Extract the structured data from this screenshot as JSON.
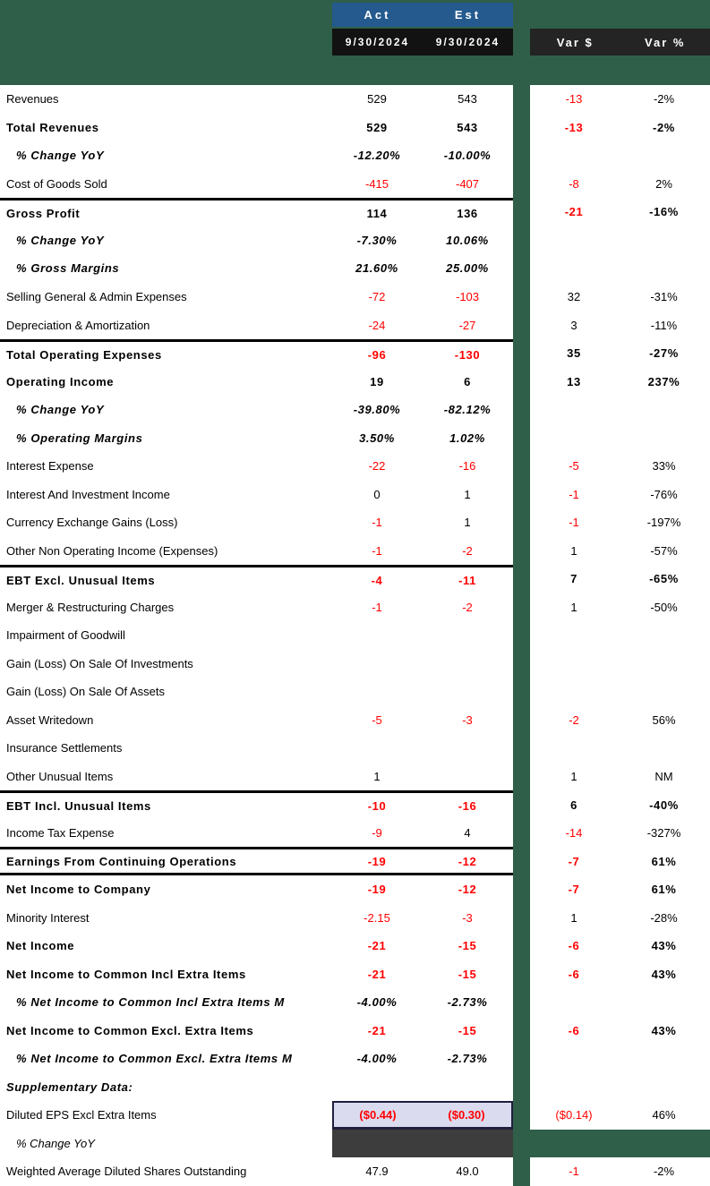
{
  "header": {
    "act_label": "Act",
    "est_label": "Est",
    "act_date": "9/30/2024",
    "est_date": "9/30/2024",
    "var_dollar_label": "Var $",
    "var_pct_label": "Var %"
  },
  "colors": {
    "background_green": "#2f5f48",
    "header_blue": "#245a8d",
    "dates_header_black": "#121212",
    "var_header_dark": "#242424",
    "negative_red": "#ff0000",
    "eps_highlight_bg": "#dbdbef",
    "eps_highlight_border": "#201f3d",
    "dark_fill": "#3d3d3d"
  },
  "rows": [
    {
      "label": "Revenues",
      "act": "529",
      "est": "543",
      "vd": "-13",
      "vp": "-2%",
      "flags": "vr"
    },
    {
      "label": "Total Revenues",
      "act": "529",
      "est": "543",
      "vd": "-13",
      "vp": "-2%",
      "flags": "b vr"
    },
    {
      "label": "% Change YoY",
      "act": "-12.20%",
      "est": "-10.00%",
      "vd": "",
      "vp": "",
      "flags": "pct"
    },
    {
      "label": "Cost of Goods Sold",
      "act": "-415",
      "est": "-407",
      "vd": "-8",
      "vp": "2%",
      "flags": "ar er vr"
    },
    {
      "label": "Gross Profit",
      "act": "114",
      "est": "136",
      "vd": "-21",
      "vp": "-16%",
      "flags": "b vr bt"
    },
    {
      "label": "% Change YoY",
      "act": "-7.30%",
      "est": "10.06%",
      "vd": "",
      "vp": "",
      "flags": "pct"
    },
    {
      "label": "% Gross Margins",
      "act": "21.60%",
      "est": "25.00%",
      "vd": "",
      "vp": "",
      "flags": "pct"
    },
    {
      "label": "Selling General & Admin Expenses",
      "act": "-72",
      "est": "-103",
      "vd": "32",
      "vp": "-31%",
      "flags": "ar er"
    },
    {
      "label": "Depreciation & Amortization",
      "act": "-24",
      "est": "-27",
      "vd": "3",
      "vp": "-11%",
      "flags": "ar er"
    },
    {
      "label": "Total Operating Expenses",
      "act": "-96",
      "est": "-130",
      "vd": "35",
      "vp": "-27%",
      "flags": "b ar er bt"
    },
    {
      "label": "Operating Income",
      "act": "19",
      "est": "6",
      "vd": "13",
      "vp": "237%",
      "flags": "b"
    },
    {
      "label": "% Change YoY",
      "act": "-39.80%",
      "est": "-82.12%",
      "vd": "",
      "vp": "",
      "flags": "pct"
    },
    {
      "label": "% Operating Margins",
      "act": "3.50%",
      "est": "1.02%",
      "vd": "",
      "vp": "",
      "flags": "pct"
    },
    {
      "label": "Interest Expense",
      "act": "-22",
      "est": "-16",
      "vd": "-5",
      "vp": "33%",
      "flags": "ar er vr"
    },
    {
      "label": "Interest And Investment Income",
      "act": "0",
      "est": "1",
      "vd": "-1",
      "vp": "-76%",
      "flags": "vr"
    },
    {
      "label": "Currency Exchange Gains (Loss)",
      "act": "-1",
      "est": "1",
      "vd": "-1",
      "vp": "-197%",
      "flags": "ar vr"
    },
    {
      "label": "Other Non Operating Income (Expenses)",
      "act": "-1",
      "est": "-2",
      "vd": "1",
      "vp": "-57%",
      "flags": "ar er"
    },
    {
      "label": "EBT Excl. Unusual Items",
      "act": "-4",
      "est": "-11",
      "vd": "7",
      "vp": "-65%",
      "flags": "b ar er bt"
    },
    {
      "label": "Merger & Restructuring Charges",
      "act": "-1",
      "est": "-2",
      "vd": "1",
      "vp": "-50%",
      "flags": "ar er"
    },
    {
      "label": "Impairment of Goodwill",
      "act": "",
      "est": "",
      "vd": "",
      "vp": "",
      "flags": ""
    },
    {
      "label": "Gain (Loss) On Sale Of Investments",
      "act": "",
      "est": "",
      "vd": "",
      "vp": "",
      "flags": ""
    },
    {
      "label": "Gain (Loss) On Sale Of Assets",
      "act": "",
      "est": "",
      "vd": "",
      "vp": "",
      "flags": ""
    },
    {
      "label": "Asset Writedown",
      "act": "-5",
      "est": "-3",
      "vd": "-2",
      "vp": "56%",
      "flags": "ar er vr"
    },
    {
      "label": "Insurance Settlements",
      "act": "",
      "est": "",
      "vd": "",
      "vp": "",
      "flags": ""
    },
    {
      "label": "Other Unusual Items",
      "act": "1",
      "est": "",
      "vd": "1",
      "vp": "NM",
      "flags": ""
    },
    {
      "label": "EBT Incl. Unusual Items",
      "act": "-10",
      "est": "-16",
      "vd": "6",
      "vp": "-40%",
      "flags": "b ar er bt"
    },
    {
      "label": "Income Tax Expense",
      "act": "-9",
      "est": "4",
      "vd": "-14",
      "vp": "-327%",
      "flags": "ar vr"
    },
    {
      "label": "Earnings From Continuing Operations",
      "act": "-19",
      "est": "-12",
      "vd": "-7",
      "vp": "61%",
      "flags": "b ar er vr bt bb"
    },
    {
      "label": "Net Income to Company",
      "act": "-19",
      "est": "-12",
      "vd": "-7",
      "vp": "61%",
      "flags": "b ar er vr"
    },
    {
      "label": "Minority Interest",
      "act": "-2.15",
      "est": "-3",
      "vd": "1",
      "vp": "-28%",
      "flags": "ar er"
    },
    {
      "label": "Net Income",
      "act": "-21",
      "est": "-15",
      "vd": "-6",
      "vp": "43%",
      "flags": "b ar er vr"
    },
    {
      "label": "Net Income to Common Incl Extra Items",
      "act": "-21",
      "est": "-15",
      "vd": "-6",
      "vp": "43%",
      "flags": "b ar er vr"
    },
    {
      "label": "% Net Income to Common Incl Extra Items M",
      "act": "-4.00%",
      "est": "-2.73%",
      "vd": "",
      "vp": "",
      "flags": "pct"
    },
    {
      "label": "Net Income to Common Excl. Extra Items",
      "act": "-21",
      "est": "-15",
      "vd": "-6",
      "vp": "43%",
      "flags": "b ar er vr"
    },
    {
      "label": "% Net Income to Common Excl. Extra Items M",
      "act": "-4.00%",
      "est": "-2.73%",
      "vd": "",
      "vp": "",
      "flags": "pct"
    },
    {
      "label": "Supplementary Data:",
      "act": "",
      "est": "",
      "vd": "",
      "vp": "",
      "flags": "si"
    },
    {
      "label": "Diluted EPS Excl Extra Items",
      "act": "($0.44)",
      "est": "($0.30)",
      "vd": "($0.14)",
      "vp": "46%",
      "flags": "ar er vr hl"
    },
    {
      "label": "% Change YoY",
      "act": "",
      "est": "",
      "vd": "",
      "vp": "",
      "flags": "it dk novar"
    },
    {
      "label": "Weighted Average Diluted Shares Outstanding",
      "act": "47.9",
      "est": "49.0",
      "vd": "-1",
      "vp": "-2%",
      "flags": "vr"
    }
  ]
}
